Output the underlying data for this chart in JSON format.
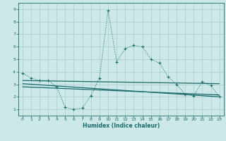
{
  "xlabel": "Humidex (Indice chaleur)",
  "xlim": [
    -0.5,
    23.5
  ],
  "ylim": [
    0.5,
    9.5
  ],
  "xticks": [
    0,
    1,
    2,
    3,
    4,
    5,
    6,
    7,
    8,
    9,
    10,
    11,
    12,
    13,
    14,
    15,
    16,
    17,
    18,
    19,
    20,
    21,
    22,
    23
  ],
  "yticks": [
    1,
    2,
    3,
    4,
    5,
    6,
    7,
    8,
    9
  ],
  "bg_color": "#cce8e8",
  "line_color": "#1a6b6b",
  "grid_color": "#aacccc",
  "curve_x": [
    0,
    1,
    2,
    3,
    4,
    5,
    6,
    7,
    8,
    9,
    10,
    11,
    12,
    13,
    14,
    15,
    16,
    17,
    18,
    19,
    20,
    21,
    22,
    23
  ],
  "curve_y": [
    3.9,
    3.5,
    3.3,
    3.3,
    2.8,
    1.15,
    1.0,
    1.1,
    2.1,
    3.5,
    8.9,
    4.8,
    5.85,
    6.1,
    6.0,
    5.0,
    4.7,
    3.6,
    3.0,
    2.2,
    2.1,
    3.2,
    2.9,
    2.0
  ],
  "line1_x": [
    0,
    23
  ],
  "line1_y": [
    3.3,
    3.05
  ],
  "line2_x": [
    0,
    23
  ],
  "line2_y": [
    3.05,
    2.0
  ],
  "line3_x": [
    0,
    23
  ],
  "line3_y": [
    2.8,
    2.15
  ]
}
